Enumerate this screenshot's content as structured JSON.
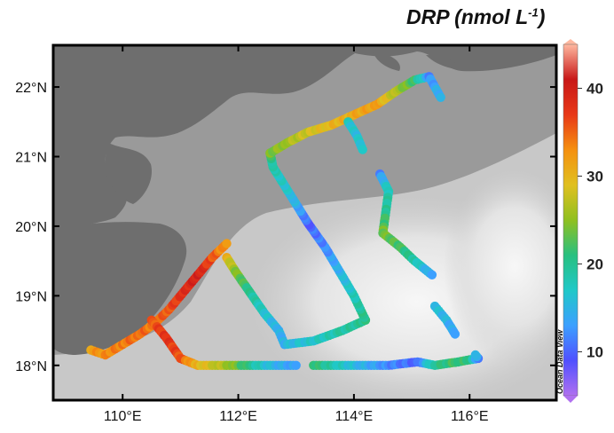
{
  "title": {
    "main": "DRP (nmol L",
    "sup": "-1",
    "close": ")"
  },
  "watermark": "Ocean Data View",
  "axes": {
    "x_ticks": [
      "110°E",
      "112°E",
      "114°E",
      "116°E"
    ],
    "x_values": [
      110,
      112,
      114,
      116
    ],
    "y_ticks": [
      "22°N",
      "21°N",
      "20°N",
      "19°N",
      "18°N"
    ],
    "y_values": [
      22,
      21,
      20,
      19,
      18
    ],
    "lon_range": [
      108.8,
      117.5
    ],
    "lat_range": [
      17.5,
      22.6
    ]
  },
  "colorbar": {
    "ticks": [
      "40",
      "30",
      "20",
      "10"
    ],
    "tick_values": [
      40,
      30,
      20,
      10
    ],
    "range": [
      5,
      45
    ],
    "stops": [
      "#b070f0",
      "#5050ff",
      "#3ca0ff",
      "#20c8c8",
      "#28c080",
      "#90c020",
      "#e0c020",
      "#f59010",
      "#e83818",
      "#c81818",
      "#ffb8a0"
    ]
  },
  "colors": {
    "land": "#6e6e6e",
    "frame": "#000000",
    "shelf_sea": "#9a9a9a"
  },
  "chart_data": {
    "type": "scatter",
    "title": "DRP (nmol L-1)",
    "xlabel": "",
    "ylabel": "",
    "xlim": [
      108.8,
      117.5
    ],
    "ylim": [
      17.5,
      22.6
    ],
    "colorbar_range": [
      5,
      45
    ],
    "tracks": [
      {
        "points": [
          [
            109.45,
            18.22,
            32
          ],
          [
            109.7,
            18.15,
            33
          ],
          [
            110.0,
            18.3,
            34
          ],
          [
            110.3,
            18.45,
            35
          ],
          [
            110.55,
            18.6,
            34
          ],
          [
            110.8,
            18.8,
            36
          ],
          [
            111.05,
            19.05,
            38
          ],
          [
            111.3,
            19.3,
            40
          ],
          [
            111.55,
            19.55,
            36
          ],
          [
            111.8,
            19.75,
            32
          ]
        ]
      },
      {
        "points": [
          [
            110.5,
            18.65,
            35
          ],
          [
            110.75,
            18.4,
            38
          ],
          [
            111.0,
            18.1,
            36
          ],
          [
            111.3,
            18.0,
            30
          ],
          [
            111.6,
            18.0,
            28
          ],
          [
            111.9,
            18.0,
            25
          ],
          [
            112.2,
            18.0,
            20
          ],
          [
            112.6,
            18.0,
            15
          ],
          [
            113.0,
            18.0,
            13
          ]
        ]
      },
      {
        "points": [
          [
            113.3,
            18.0,
            22
          ],
          [
            113.7,
            18.0,
            18
          ],
          [
            114.1,
            18.0,
            15
          ],
          [
            114.6,
            18.0,
            12
          ],
          [
            115.1,
            18.05,
            10
          ],
          [
            115.4,
            18.0,
            20
          ],
          [
            115.8,
            18.05,
            22
          ],
          [
            116.0,
            18.08,
            20
          ],
          [
            116.15,
            18.1,
            12
          ],
          [
            116.1,
            18.15,
            15
          ]
        ]
      },
      {
        "points": [
          [
            111.8,
            19.55,
            30
          ],
          [
            111.95,
            19.35,
            25
          ],
          [
            112.2,
            19.05,
            20
          ],
          [
            112.45,
            18.75,
            17
          ],
          [
            112.7,
            18.5,
            14
          ],
          [
            112.8,
            18.3,
            15
          ],
          [
            113.3,
            18.35,
            17
          ],
          [
            113.8,
            18.5,
            19
          ],
          [
            114.2,
            18.65,
            20
          ]
        ]
      },
      {
        "points": [
          [
            114.2,
            18.65,
            21
          ],
          [
            114.0,
            19.0,
            18
          ],
          [
            113.75,
            19.35,
            15
          ],
          [
            113.5,
            19.7,
            12
          ],
          [
            113.2,
            20.05,
            10
          ],
          [
            112.9,
            20.45,
            16
          ],
          [
            112.6,
            20.85,
            18
          ],
          [
            112.55,
            21.05,
            22
          ]
        ]
      },
      {
        "points": [
          [
            112.55,
            21.05,
            24
          ],
          [
            112.85,
            21.2,
            26
          ],
          [
            113.2,
            21.35,
            28
          ],
          [
            113.6,
            21.45,
            30
          ],
          [
            114.0,
            21.6,
            31
          ],
          [
            114.4,
            21.75,
            32
          ],
          [
            114.75,
            21.95,
            26
          ],
          [
            115.05,
            22.1,
            22
          ],
          [
            115.3,
            22.15,
            12
          ],
          [
            115.5,
            21.85,
            15
          ]
        ]
      },
      {
        "points": [
          [
            113.9,
            21.5,
            17
          ],
          [
            114.05,
            21.3,
            16
          ],
          [
            114.15,
            21.1,
            17
          ]
        ]
      },
      {
        "points": [
          [
            114.45,
            20.75,
            12
          ],
          [
            114.6,
            20.5,
            18
          ],
          [
            114.55,
            20.2,
            20
          ],
          [
            114.5,
            19.9,
            24
          ],
          [
            114.8,
            19.7,
            22
          ],
          [
            115.05,
            19.5,
            19
          ],
          [
            115.35,
            19.3,
            13
          ]
        ]
      },
      {
        "points": [
          [
            115.4,
            18.85,
            16
          ],
          [
            115.6,
            18.65,
            15
          ],
          [
            115.75,
            18.45,
            13
          ]
        ]
      }
    ]
  }
}
